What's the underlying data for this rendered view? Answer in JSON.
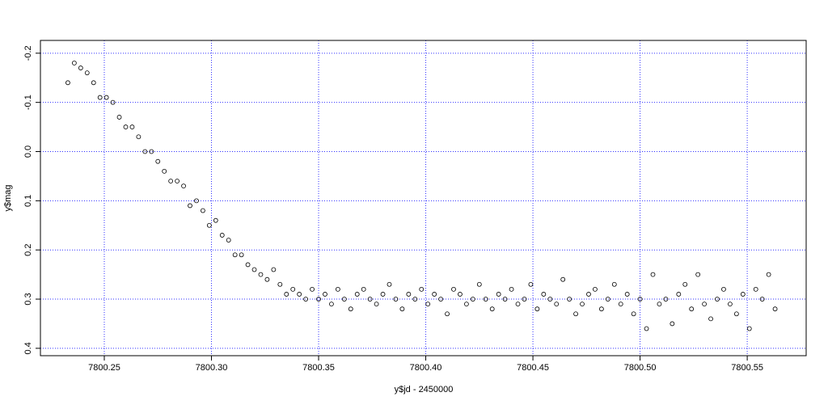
{
  "chart_data": {
    "type": "scatter",
    "xlabel": "y$jd - 2450000",
    "ylabel": "y$mag",
    "xlim": [
      7800.2202,
      7800.5775
    ],
    "ylim": [
      0.415,
      -0.226
    ],
    "xticks": [
      7800.25,
      {
        "value": 7800.3,
        "label": "7800.30"
      },
      7800.35,
      {
        "value": 7800.4,
        "label": "7800.40"
      },
      7800.45,
      {
        "value": 7800.5,
        "label": "7800.50"
      },
      7800.55
    ],
    "yticks": [
      -0.2,
      -0.1,
      {
        "value": 0,
        "label": "0.0"
      },
      0.1,
      0.2,
      0.3,
      0.4
    ],
    "grid": true,
    "grid_color": "#3333ff",
    "color": "#000000",
    "x": [
      7800.233,
      7800.236,
      7800.239,
      7800.242,
      7800.245,
      7800.248,
      7800.251,
      7800.254,
      7800.257,
      7800.26,
      7800.263,
      7800.266,
      7800.269,
      7800.272,
      7800.275,
      7800.278,
      7800.281,
      7800.284,
      7800.287,
      7800.29,
      7800.293,
      7800.296,
      7800.299,
      7800.302,
      7800.305,
      7800.308,
      7800.311,
      7800.314,
      7800.317,
      7800.32,
      7800.323,
      7800.326,
      7800.329,
      7800.332,
      7800.335,
      7800.338,
      7800.341,
      7800.344,
      7800.347,
      7800.35,
      7800.353,
      7800.356,
      7800.359,
      7800.362,
      7800.365,
      7800.368,
      7800.371,
      7800.374,
      7800.377,
      7800.38,
      7800.383,
      7800.386,
      7800.389,
      7800.392,
      7800.395,
      7800.398,
      7800.401,
      7800.404,
      7800.407,
      7800.41,
      7800.413,
      7800.416,
      7800.419,
      7800.422,
      7800.425,
      7800.428,
      7800.431,
      7800.434,
      7800.437,
      7800.44,
      7800.443,
      7800.446,
      7800.449,
      7800.452,
      7800.455,
      7800.458,
      7800.461,
      7800.464,
      7800.467,
      7800.47,
      7800.473,
      7800.476,
      7800.479,
      7800.482,
      7800.485,
      7800.488,
      7800.491,
      7800.494,
      7800.497,
      7800.5,
      7800.503,
      7800.506,
      7800.509,
      7800.512,
      7800.515,
      7800.518,
      7800.521,
      7800.524,
      7800.527,
      7800.53,
      7800.533,
      7800.536,
      7800.539,
      7800.542,
      7800.545,
      7800.548,
      7800.551,
      7800.554,
      7800.557,
      7800.56,
      7800.563
    ],
    "values": [
      -0.14,
      -0.18,
      -0.17,
      -0.16,
      -0.14,
      -0.11,
      -0.11,
      -0.1,
      -0.07,
      -0.05,
      -0.05,
      -0.03,
      0,
      0,
      0.02,
      0.04,
      0.06,
      0.06,
      0.07,
      0.11,
      0.1,
      0.12,
      0.15,
      0.14,
      0.17,
      0.18,
      0.21,
      0.21,
      0.23,
      0.24,
      0.25,
      0.26,
      0.24,
      0.27,
      0.29,
      0.28,
      0.29,
      0.3,
      0.28,
      0.3,
      0.29,
      0.31,
      0.28,
      0.3,
      0.32,
      0.29,
      0.28,
      0.3,
      0.31,
      0.29,
      0.27,
      0.3,
      0.32,
      0.29,
      0.3,
      0.28,
      0.31,
      0.29,
      0.3,
      0.33,
      0.28,
      0.29,
      0.31,
      0.3,
      0.27,
      0.3,
      0.32,
      0.29,
      0.3,
      0.28,
      0.31,
      0.3,
      0.27,
      0.32,
      0.29,
      0.3,
      0.31,
      0.26,
      0.3,
      0.33,
      0.31,
      0.29,
      0.28,
      0.32,
      0.3,
      0.27,
      0.31,
      0.29,
      0.33,
      0.3,
      0.36,
      0.25,
      0.31,
      0.3,
      0.35,
      0.29,
      0.27,
      0.32,
      0.25,
      0.31,
      0.34,
      0.3,
      0.28,
      0.31,
      0.33,
      0.29,
      0.36,
      0.28,
      0.3,
      0.25,
      0.32
    ]
  }
}
